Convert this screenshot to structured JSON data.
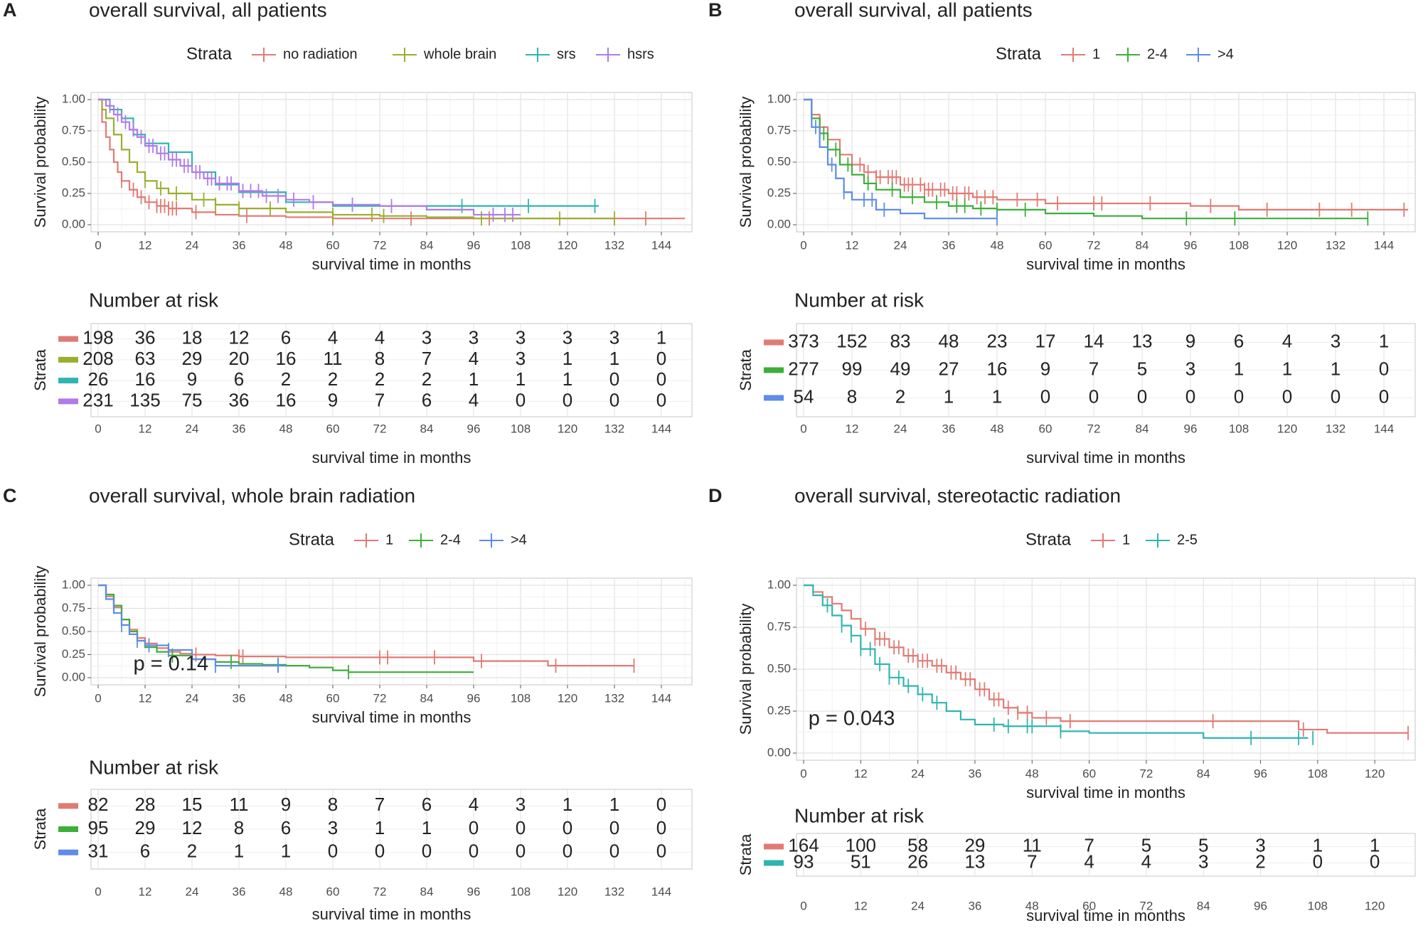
{
  "figure": {
    "panel_labels": [
      "A",
      "B",
      "C",
      "D"
    ]
  },
  "chart_data": [
    {
      "panel": "A",
      "type": "line",
      "title": "overall survival, all patients",
      "xlabel": "survival time in months",
      "ylabel": "Survival probability",
      "xlim": [
        0,
        150
      ],
      "ylim": [
        0,
        1
      ],
      "xticks": [
        0,
        12,
        24,
        36,
        48,
        60,
        72,
        84,
        96,
        108,
        120,
        132,
        144
      ],
      "yticks": [
        "0.00",
        "0.25",
        "0.50",
        "0.75",
        "1.00"
      ],
      "legend_title": "Strata",
      "legend_position": "top",
      "p_value": "",
      "series": [
        {
          "name": "no radiation",
          "color": "#E07B74",
          "x": [
            0,
            1,
            2,
            3,
            4,
            5,
            6,
            8,
            10,
            12,
            15,
            18,
            24,
            30,
            36,
            48,
            60,
            72,
            96,
            120,
            132,
            150
          ],
          "y": [
            1.0,
            0.82,
            0.7,
            0.6,
            0.5,
            0.42,
            0.35,
            0.28,
            0.22,
            0.18,
            0.15,
            0.13,
            0.1,
            0.08,
            0.07,
            0.06,
            0.05,
            0.05,
            0.05,
            0.05,
            0.05,
            0.05
          ],
          "censor_x": [
            6,
            9,
            11,
            13,
            15,
            16,
            17,
            18,
            19,
            20,
            25,
            38,
            60,
            80,
            100,
            140
          ]
        },
        {
          "name": "whole brain",
          "color": "#9AAE2E",
          "x": [
            0,
            1,
            2,
            4,
            6,
            8,
            10,
            12,
            15,
            18,
            24,
            30,
            36,
            48,
            60,
            72,
            84,
            96,
            108,
            120,
            132
          ],
          "y": [
            1.0,
            0.92,
            0.85,
            0.72,
            0.6,
            0.5,
            0.42,
            0.35,
            0.29,
            0.25,
            0.2,
            0.16,
            0.13,
            0.1,
            0.08,
            0.07,
            0.06,
            0.05,
            0.05,
            0.05,
            0.05
          ],
          "censor_x": [
            12,
            16,
            20,
            27,
            30,
            36,
            44,
            60,
            70,
            73,
            98,
            118,
            132
          ]
        },
        {
          "name": "srs",
          "color": "#2FB5B0",
          "x": [
            0,
            3,
            6,
            9,
            12,
            18,
            24,
            30,
            36,
            48,
            60,
            72,
            84,
            96,
            108,
            120,
            128
          ],
          "y": [
            1.0,
            0.92,
            0.85,
            0.72,
            0.65,
            0.58,
            0.42,
            0.32,
            0.26,
            0.18,
            0.15,
            0.15,
            0.15,
            0.15,
            0.15,
            0.15,
            0.15
          ],
          "censor_x": [
            93,
            110,
            127
          ]
        },
        {
          "name": "hsrs",
          "color": "#B07BE8",
          "x": [
            0,
            2,
            4,
            6,
            8,
            10,
            12,
            15,
            18,
            21,
            24,
            27,
            30,
            36,
            42,
            48,
            54,
            60,
            72,
            84,
            96,
            108
          ],
          "y": [
            1.0,
            0.95,
            0.88,
            0.82,
            0.76,
            0.7,
            0.63,
            0.57,
            0.52,
            0.47,
            0.42,
            0.37,
            0.33,
            0.27,
            0.23,
            0.2,
            0.18,
            0.16,
            0.15,
            0.12,
            0.08,
            0.08
          ],
          "censor_x": [
            3,
            5,
            7,
            9,
            11,
            13,
            14,
            16,
            17,
            19,
            20,
            22,
            23,
            25,
            26,
            28,
            29,
            31,
            33,
            34,
            37,
            39,
            41,
            43,
            46,
            50,
            55,
            65,
            75,
            101,
            104,
            106
          ]
        }
      ],
      "risk_table": {
        "title": "Number at risk",
        "ylabel": "Strata",
        "xlabel": "survival time in months",
        "rows": [
          [
            198,
            36,
            18,
            12,
            6,
            4,
            4,
            3,
            3,
            3,
            3,
            3,
            1
          ],
          [
            208,
            63,
            29,
            20,
            16,
            11,
            8,
            7,
            4,
            3,
            1,
            1,
            0
          ],
          [
            26,
            16,
            9,
            6,
            2,
            2,
            2,
            2,
            1,
            1,
            1,
            0,
            0
          ],
          [
            231,
            135,
            75,
            36,
            16,
            9,
            7,
            6,
            4,
            0,
            0,
            0,
            0
          ]
        ]
      }
    },
    {
      "panel": "B",
      "type": "line",
      "title": "overall survival, all patients",
      "xlabel": "survival time in months",
      "ylabel": "Survival probability",
      "xlim": [
        0,
        150
      ],
      "ylim": [
        0,
        1
      ],
      "xticks": [
        0,
        12,
        24,
        36,
        48,
        60,
        72,
        84,
        96,
        108,
        120,
        132,
        144
      ],
      "yticks": [
        "0.00",
        "0.25",
        "0.50",
        "0.75",
        "1.00"
      ],
      "legend_title": "Strata",
      "legend_position": "top",
      "p_value": "",
      "series": [
        {
          "name": "1",
          "color": "#E07B74",
          "x": [
            0,
            2,
            4,
            6,
            9,
            12,
            15,
            18,
            24,
            30,
            36,
            42,
            48,
            60,
            72,
            84,
            96,
            108,
            120,
            132,
            150
          ],
          "y": [
            1.0,
            0.88,
            0.78,
            0.68,
            0.56,
            0.48,
            0.42,
            0.38,
            0.32,
            0.28,
            0.25,
            0.22,
            0.2,
            0.17,
            0.17,
            0.17,
            0.15,
            0.12,
            0.12,
            0.12,
            0.12
          ],
          "censor_x": [
            14,
            16,
            18,
            19,
            21,
            22,
            23,
            25,
            26,
            27,
            29,
            30,
            31,
            32,
            34,
            35,
            37,
            38,
            40,
            41,
            43,
            45,
            47,
            53,
            58,
            63,
            72,
            74,
            86,
            101,
            115,
            128,
            136,
            149
          ]
        },
        {
          "name": "2-4",
          "color": "#3DAE3A",
          "x": [
            0,
            2,
            4,
            6,
            9,
            12,
            15,
            18,
            24,
            30,
            36,
            42,
            48,
            60,
            72,
            84,
            96,
            108,
            120,
            132,
            140
          ],
          "y": [
            1.0,
            0.85,
            0.73,
            0.6,
            0.48,
            0.4,
            0.33,
            0.28,
            0.22,
            0.18,
            0.15,
            0.13,
            0.12,
            0.09,
            0.07,
            0.05,
            0.05,
            0.05,
            0.05,
            0.05,
            0.05
          ],
          "censor_x": [
            5,
            8,
            11,
            16,
            22,
            27,
            33,
            38,
            40,
            44,
            48,
            55,
            95,
            107,
            140
          ]
        },
        {
          "name": ">4",
          "color": "#5E8CE8",
          "x": [
            0,
            2,
            4,
            6,
            8,
            10,
            12,
            18,
            24,
            30,
            36,
            48
          ],
          "y": [
            1.0,
            0.78,
            0.62,
            0.48,
            0.37,
            0.26,
            0.2,
            0.12,
            0.09,
            0.05,
            0.05,
            0.05
          ],
          "censor_x": [
            3,
            7,
            10,
            15,
            17,
            20,
            48
          ]
        }
      ],
      "risk_table": {
        "title": "Number at risk",
        "ylabel": "Strata",
        "xlabel": "survival time in months",
        "rows": [
          [
            373,
            152,
            83,
            48,
            23,
            17,
            14,
            13,
            9,
            6,
            4,
            3,
            1
          ],
          [
            277,
            99,
            49,
            27,
            16,
            9,
            7,
            5,
            3,
            1,
            1,
            1,
            0
          ],
          [
            54,
            8,
            2,
            1,
            1,
            0,
            0,
            0,
            0,
            0,
            0,
            0,
            0
          ]
        ]
      }
    },
    {
      "panel": "C",
      "type": "line",
      "title": "overall survival, whole brain radiation",
      "xlabel": "survival time in months",
      "ylabel": "Survival probability",
      "xlim": [
        0,
        150
      ],
      "ylim": [
        0,
        1
      ],
      "xticks": [
        0,
        12,
        24,
        36,
        48,
        60,
        72,
        84,
        96,
        108,
        120,
        132,
        144
      ],
      "yticks": [
        "0.00",
        "0.25",
        "0.50",
        "0.75",
        "1.00"
      ],
      "legend_title": "Strata",
      "legend_position": "top",
      "p_value": "p = 0.14",
      "series": [
        {
          "name": "1",
          "color": "#E07B74",
          "x": [
            0,
            2,
            4,
            6,
            8,
            10,
            12,
            15,
            18,
            21,
            24,
            30,
            36,
            48,
            60,
            72,
            84,
            96,
            108,
            115,
            120,
            137
          ],
          "y": [
            1.0,
            0.88,
            0.76,
            0.63,
            0.52,
            0.43,
            0.37,
            0.32,
            0.28,
            0.26,
            0.25,
            0.24,
            0.23,
            0.22,
            0.22,
            0.22,
            0.22,
            0.18,
            0.18,
            0.13,
            0.13,
            0.13
          ],
          "censor_x": [
            25,
            36,
            37,
            72,
            74,
            86,
            98,
            117,
            137
          ]
        },
        {
          "name": "2-4",
          "color": "#3DAE3A",
          "x": [
            0,
            2,
            4,
            6,
            8,
            10,
            12,
            15,
            18,
            24,
            30,
            36,
            42,
            48,
            54,
            60,
            64,
            72,
            84,
            96
          ],
          "y": [
            1.0,
            0.9,
            0.78,
            0.63,
            0.5,
            0.4,
            0.33,
            0.28,
            0.24,
            0.2,
            0.17,
            0.15,
            0.14,
            0.13,
            0.11,
            0.08,
            0.06,
            0.06,
            0.06,
            0.06
          ],
          "censor_x": [
            19,
            34,
            46,
            64
          ]
        },
        {
          "name": ">4",
          "color": "#5E8CE8",
          "x": [
            0,
            2,
            4,
            6,
            8,
            10,
            12,
            18,
            24,
            30,
            36,
            48
          ],
          "y": [
            1.0,
            0.85,
            0.7,
            0.57,
            0.47,
            0.4,
            0.35,
            0.3,
            0.2,
            0.13,
            0.13,
            0.13
          ],
          "censor_x": [
            6,
            10,
            13,
            18,
            30,
            46
          ]
        }
      ],
      "risk_table": {
        "title": "Number at risk",
        "ylabel": "Strata",
        "xlabel": "survival time in months",
        "rows": [
          [
            82,
            28,
            15,
            11,
            9,
            8,
            7,
            6,
            4,
            3,
            1,
            1,
            0
          ],
          [
            95,
            29,
            12,
            8,
            6,
            3,
            1,
            1,
            0,
            0,
            0,
            0,
            0
          ],
          [
            31,
            6,
            2,
            1,
            1,
            0,
            0,
            0,
            0,
            0,
            0,
            0,
            0
          ]
        ]
      }
    },
    {
      "panel": "D",
      "type": "line",
      "title": "overall survival, stereotactic radiation",
      "xlabel": "survival time in months",
      "ylabel": "Survival probability",
      "xlim": [
        0,
        127
      ],
      "ylim": [
        0,
        1
      ],
      "xticks": [
        0,
        12,
        24,
        36,
        48,
        60,
        72,
        84,
        96,
        108,
        120
      ],
      "yticks": [
        "0.00",
        "0.25",
        "0.50",
        "0.75",
        "1.00"
      ],
      "legend_title": "Strata",
      "legend_position": "top",
      "p_value": "p = 0.043",
      "series": [
        {
          "name": "1",
          "color": "#E07B74",
          "x": [
            0,
            2,
            4,
            6,
            8,
            10,
            12,
            15,
            18,
            21,
            24,
            27,
            30,
            33,
            36,
            39,
            42,
            45,
            48,
            54,
            60,
            72,
            84,
            96,
            104,
            110,
            127
          ],
          "y": [
            1.0,
            0.96,
            0.93,
            0.89,
            0.85,
            0.8,
            0.74,
            0.68,
            0.63,
            0.58,
            0.55,
            0.52,
            0.48,
            0.44,
            0.38,
            0.32,
            0.27,
            0.24,
            0.21,
            0.19,
            0.19,
            0.19,
            0.19,
            0.19,
            0.14,
            0.12,
            0.12
          ],
          "censor_x": [
            13,
            15,
            16,
            17,
            19,
            20,
            22,
            23,
            24,
            25,
            26,
            28,
            29,
            31,
            32,
            34,
            35,
            37,
            38,
            40,
            41,
            43,
            45,
            47,
            51,
            56,
            86,
            105,
            127
          ]
        },
        {
          "name": "2-5",
          "color": "#2FB5B0",
          "x": [
            0,
            2,
            4,
            6,
            8,
            10,
            12,
            15,
            18,
            21,
            24,
            27,
            30,
            33,
            36,
            42,
            48,
            54,
            60,
            72,
            84,
            96,
            106
          ],
          "y": [
            1.0,
            0.94,
            0.88,
            0.82,
            0.76,
            0.7,
            0.62,
            0.53,
            0.45,
            0.4,
            0.35,
            0.3,
            0.25,
            0.2,
            0.17,
            0.16,
            0.16,
            0.13,
            0.12,
            0.12,
            0.09,
            0.09,
            0.09
          ],
          "censor_x": [
            5,
            8,
            10,
            12,
            14,
            16,
            18,
            20,
            22,
            25,
            28,
            40,
            43,
            47,
            48,
            54,
            94,
            104,
            107
          ]
        }
      ],
      "risk_table": {
        "title": "Number at risk",
        "ylabel": "Strata",
        "xlabel": "survival time in months",
        "rows": [
          [
            164,
            100,
            58,
            29,
            11,
            7,
            5,
            5,
            3,
            1,
            1
          ],
          [
            93,
            51,
            26,
            13,
            7,
            4,
            4,
            3,
            2,
            0,
            0
          ]
        ]
      }
    }
  ]
}
